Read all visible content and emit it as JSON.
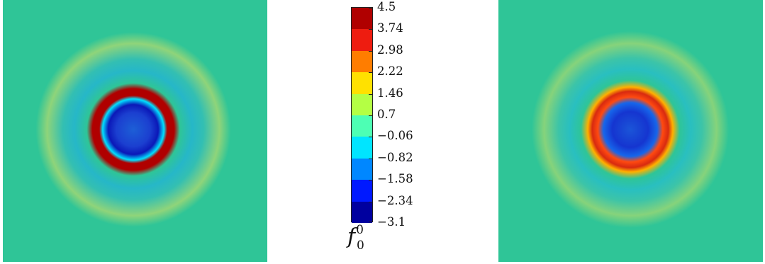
{
  "colorbar": {
    "title_symbol": "f",
    "title_superscript": "0",
    "title_subscript": "0",
    "labels": [
      "4.5",
      "3.74",
      "2.98",
      "2.22",
      "1.46",
      "0.7",
      "−0.06",
      "−0.82",
      "−1.58",
      "−2.34",
      "−3.1"
    ],
    "colors": [
      "#b00000",
      "#ee1c10",
      "#ff7d00",
      "#ffe100",
      "#b4ff44",
      "#4dffb4",
      "#00e5ff",
      "#0087ff",
      "#0019ff",
      "#00009f"
    ]
  },
  "colors": {
    "background_field": "#2fc597",
    "page": "#ffffff"
  }
}
